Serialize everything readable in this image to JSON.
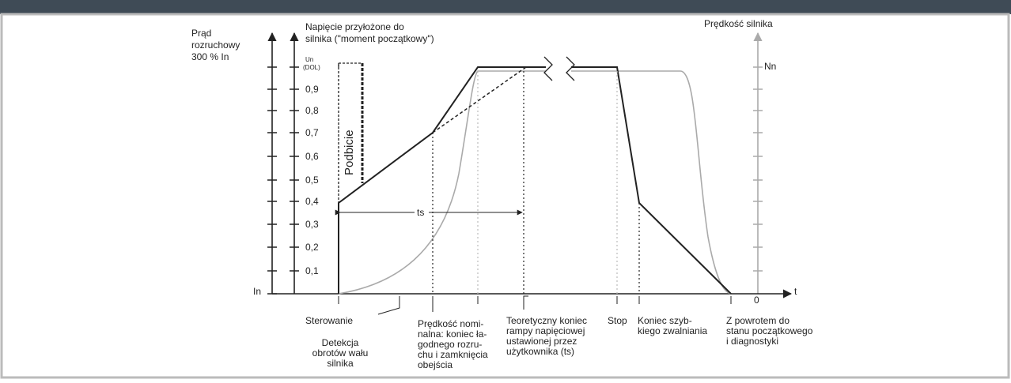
{
  "diagram": {
    "current_axis_label": [
      "Prąd",
      "rozruchowy",
      "300 % In"
    ],
    "voltage_axis_label": [
      "Napięcie przyłożone do",
      "silnika (\"moment początkowy\")"
    ],
    "speed_axis_label": "Prędkość silnika",
    "voltage_ticks": [
      "Un",
      "(DOL)",
      "0,9",
      "0,8",
      "0,7",
      "0,6",
      "0,5",
      "0,4",
      "0,3",
      "0,2",
      "0,1"
    ],
    "speed_tick": "Nn",
    "current_origin": "In",
    "time_origin": "0",
    "time_axis": "t",
    "boost": "Podbicie",
    "ramp_time": "ts",
    "events": [
      {
        "label": [
          "Sterowanie"
        ]
      },
      {
        "label": [
          "Detekcja",
          "obrotów wału",
          "silnika"
        ]
      },
      {
        "label": [
          "Prędkość nomi-",
          "nalna: koniec ła-",
          "godnego rozru-",
          "chu i zamknięcia",
          "obejścia"
        ]
      },
      {
        "label": [
          "Teoretyczny koniec",
          "rampy napięciowej",
          "ustawionej przez",
          "użytkownika (ts)"
        ]
      },
      {
        "label": [
          "Stop"
        ]
      },
      {
        "label": [
          "Koniec szyb-",
          "kiego zwalniania"
        ]
      },
      {
        "label": [
          "Z powrotem do",
          "stanu początkowego",
          "i diagnostyki"
        ]
      }
    ]
  }
}
